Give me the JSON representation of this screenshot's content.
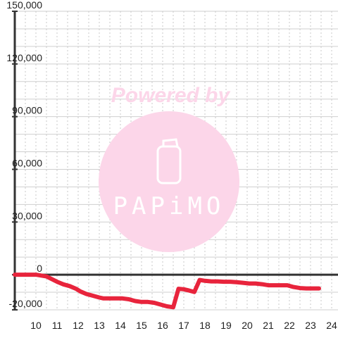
{
  "chart_data": {
    "type": "line",
    "title": "",
    "xlabel": "",
    "ylabel": "",
    "xlim": [
      9.0,
      24.3
    ],
    "ylim": [
      -20000,
      150000
    ],
    "x_ticks": [
      "10",
      "11",
      "12",
      "13",
      "14",
      "15",
      "16",
      "17",
      "18",
      "19",
      "20",
      "21",
      "22",
      "23",
      "24"
    ],
    "y_ticks": [
      "150,000",
      "120,000",
      "90,000",
      "60,000",
      "30,000",
      "0",
      "-20,000"
    ],
    "grid": true,
    "legend": "none",
    "series": [
      {
        "color": "#e8243c",
        "x": [
          9.0,
          10.0,
          10.5,
          10.8,
          11.0,
          11.3,
          11.6,
          11.9,
          12.1,
          12.4,
          12.7,
          13.0,
          13.2,
          13.5,
          13.8,
          14.1,
          14.4,
          14.7,
          15.0,
          15.3,
          15.6,
          15.9,
          16.2,
          16.5,
          16.75,
          17.0,
          17.25,
          17.5,
          17.75,
          18.0,
          18.3,
          18.6,
          18.9,
          19.2,
          19.5,
          19.8,
          20.1,
          20.4,
          20.7,
          21.0,
          21.3,
          21.6,
          21.9,
          22.2,
          22.5,
          22.8,
          23.1,
          23.4
        ],
        "y": [
          0,
          0,
          -1000,
          -2800,
          -4000,
          -5500,
          -6500,
          -8000,
          -9500,
          -11000,
          -12000,
          -13000,
          -13500,
          -13500,
          -13500,
          -13500,
          -14000,
          -15000,
          -15500,
          -15500,
          -16000,
          -17000,
          -18000,
          -18500,
          -8000,
          -8300,
          -9000,
          -9800,
          -3000,
          -3500,
          -3800,
          -3800,
          -4000,
          -4000,
          -4300,
          -4600,
          -5000,
          -5000,
          -5400,
          -6000,
          -6000,
          -6000,
          -6000,
          -7000,
          -7600,
          -7800,
          -7800,
          -7800
        ]
      }
    ]
  },
  "watermark": {
    "text": "Powered by",
    "brand": "PAPiMO",
    "color": "#fcd6e9"
  }
}
